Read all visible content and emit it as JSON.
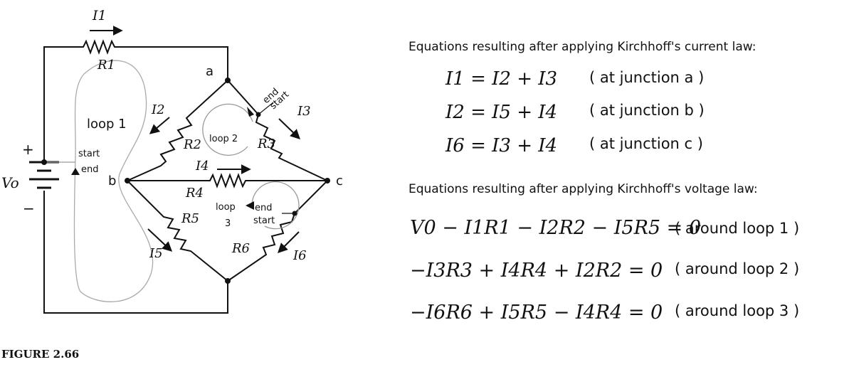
{
  "figure_caption": "FIGURE 2.66",
  "circuit": {
    "current_labels": {
      "i1": "I1",
      "i2": "I2",
      "i3": "I3",
      "i4": "I4",
      "i5": "I5",
      "i6": "I6"
    },
    "resistor_labels": {
      "r1": "R1",
      "r2": "R2",
      "r3": "R3",
      "r4": "R4",
      "r5": "R5",
      "r6": "R6"
    },
    "source_label": "Vo",
    "plus_sign": "+",
    "minus_sign": "−",
    "node_labels": {
      "a": "a",
      "b": "b",
      "c": "c"
    },
    "loop_labels": {
      "loop1": "loop 1",
      "loop2": "loop 2",
      "loop3_line1": "loop",
      "loop3_line2": "3"
    },
    "marker_labels": {
      "start": "start",
      "end": "end"
    }
  },
  "kcl": {
    "heading": "Equations resulting after applying Kirchhoff's current law:",
    "rows": [
      {
        "equation": "I1 = I2 + I3",
        "note": "( at junction a )"
      },
      {
        "equation": "I2 = I5 + I4",
        "note": "( at junction b )"
      },
      {
        "equation": "I6 = I3 + I4",
        "note": "( at junction c )"
      }
    ]
  },
  "kvl": {
    "heading": "Equations resulting after applying Kirchhoff's voltage law:",
    "rows": [
      {
        "equation": "V0 − I1R1 − I2R2 − I5R5 = 0",
        "note": "( around loop 1 )"
      },
      {
        "equation": "−I3R3 + I4R4 + I2R2 = 0",
        "note": "( around loop 2 )"
      },
      {
        "equation": "−I6R6 + I5R5 − I4R4 = 0",
        "note": "( around loop 3 )"
      }
    ]
  }
}
